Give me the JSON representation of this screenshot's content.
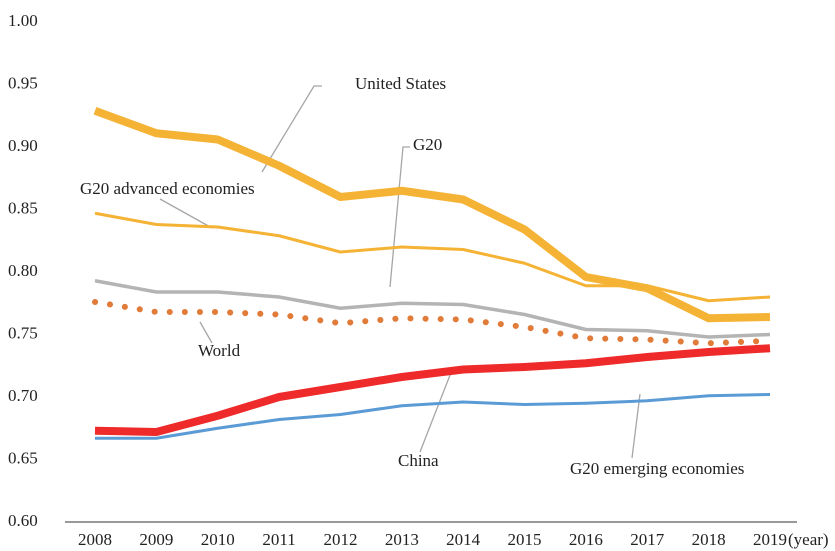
{
  "chart_data": {
    "type": "line",
    "x_label": "(year)",
    "categories": [
      "2008",
      "2009",
      "2010",
      "2011",
      "2012",
      "2013",
      "2014",
      "2015",
      "2016",
      "2017",
      "2018",
      "2019"
    ],
    "ylim": [
      0.6,
      1.0
    ],
    "yticks": [
      {
        "value": 0.6,
        "label": "0.60"
      },
      {
        "value": 0.65,
        "label": "0.65"
      },
      {
        "value": 0.7,
        "label": "0.70"
      },
      {
        "value": 0.75,
        "label": "0.75"
      },
      {
        "value": 0.8,
        "label": "0.80"
      },
      {
        "value": 0.85,
        "label": "0.85"
      },
      {
        "value": 0.9,
        "label": "0.90"
      },
      {
        "value": 0.95,
        "label": "0.95"
      },
      {
        "value": 1.0,
        "label": "1.00"
      }
    ],
    "series": [
      {
        "name": "United States",
        "color": "#f5b335",
        "width": 8,
        "style": "solid",
        "values": [
          0.929,
          0.911,
          0.906,
          0.885,
          0.86,
          0.865,
          0.858,
          0.834,
          0.796,
          0.787,
          0.763,
          0.764
        ]
      },
      {
        "name": "G20 advanced economies",
        "color": "#f5b335",
        "width": 3,
        "style": "solid",
        "values": [
          0.847,
          0.838,
          0.836,
          0.829,
          0.816,
          0.82,
          0.818,
          0.807,
          0.789,
          0.789,
          0.777,
          0.78
        ]
      },
      {
        "name": "G20",
        "color": "#b4b4b4",
        "width": 3.5,
        "style": "solid",
        "values": [
          0.793,
          0.784,
          0.784,
          0.78,
          0.771,
          0.775,
          0.774,
          0.766,
          0.754,
          0.753,
          0.748,
          0.75
        ]
      },
      {
        "name": "World",
        "color": "#e07b39",
        "width": 6,
        "style": "dotted",
        "values": [
          0.776,
          0.768,
          0.768,
          0.766,
          0.759,
          0.763,
          0.762,
          0.756,
          0.747,
          0.746,
          0.743,
          0.745
        ]
      },
      {
        "name": "China",
        "color": "#ee2a2a",
        "width": 8,
        "style": "solid",
        "values": [
          0.673,
          0.672,
          0.685,
          0.7,
          0.708,
          0.716,
          0.722,
          0.724,
          0.727,
          0.732,
          0.736,
          0.739
        ]
      },
      {
        "name": "G20 emerging economies",
        "color": "#5b9bd5",
        "width": 3,
        "style": "solid",
        "values": [
          0.667,
          0.667,
          0.675,
          0.682,
          0.686,
          0.693,
          0.696,
          0.694,
          0.695,
          0.697,
          0.701,
          0.702
        ]
      }
    ]
  }
}
